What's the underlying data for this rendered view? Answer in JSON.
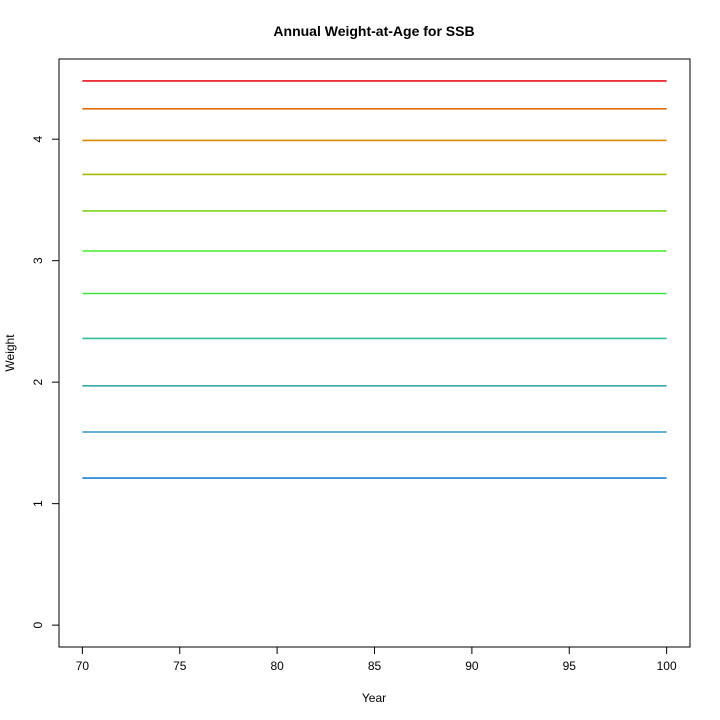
{
  "chart_data": {
    "type": "line",
    "title": "Annual Weight-at-Age for SSB",
    "xlabel": "Year",
    "ylabel": "Weight",
    "xlim": [
      68.8,
      101.2
    ],
    "ylim": [
      -0.18,
      4.66
    ],
    "x_ticks": [
      70,
      75,
      80,
      85,
      90,
      95,
      100
    ],
    "y_ticks": [
      0,
      1,
      2,
      3,
      4
    ],
    "x": [
      70,
      100
    ],
    "series": [
      {
        "values": [
          1.21,
          1.21
        ],
        "color": "#1f7fd6"
      },
      {
        "values": [
          1.59,
          1.59
        ],
        "color": "#3a94c8"
      },
      {
        "values": [
          1.97,
          1.97
        ],
        "color": "#3aa7a6"
      },
      {
        "values": [
          2.36,
          2.36
        ],
        "color": "#30c08a"
      },
      {
        "values": [
          2.73,
          2.73
        ],
        "color": "#3ee43a"
      },
      {
        "values": [
          3.08,
          3.08
        ],
        "color": "#45ee2e"
      },
      {
        "values": [
          3.41,
          3.41
        ],
        "color": "#7ed321"
      },
      {
        "values": [
          3.71,
          3.71
        ],
        "color": "#a9b80f"
      },
      {
        "values": [
          3.99,
          3.99
        ],
        "color": "#d88a08"
      },
      {
        "values": [
          4.25,
          4.25
        ],
        "color": "#e46a0c"
      },
      {
        "values": [
          4.48,
          4.48
        ],
        "color": "#e8141e"
      }
    ],
    "grid": false,
    "legend": "none"
  }
}
